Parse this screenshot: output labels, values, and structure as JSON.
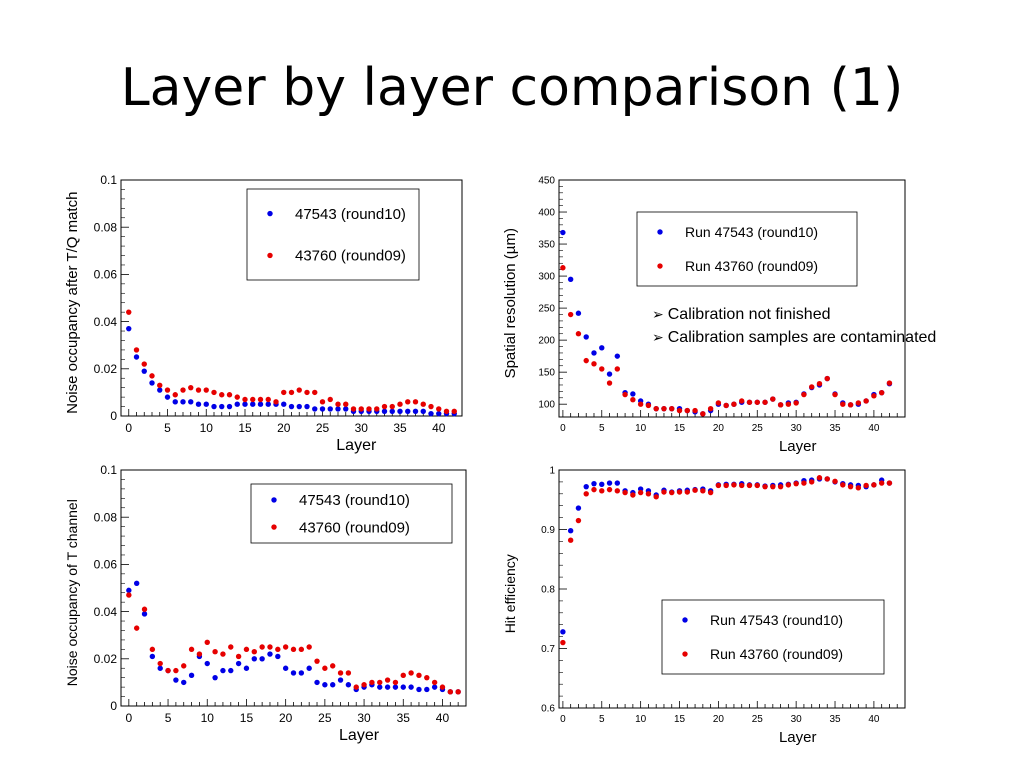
{
  "slide": {
    "title": "Layer by layer comparison (1)",
    "notes": [
      {
        "icon": "arrow-bullet",
        "text": "Calibration not finished"
      },
      {
        "icon": "arrow-bullet",
        "text": "Calibration samples are contaminated"
      }
    ]
  },
  "colors": {
    "blue": "#0000e6",
    "red": "#e60000"
  },
  "chart_data": [
    {
      "type": "scatter",
      "xlabel": "Layer",
      "ylabel": "Noise occupancy after T/Q match",
      "xlim": [
        -1,
        43
      ],
      "ylim": [
        0,
        0.1
      ],
      "xticks": [
        "0",
        "5",
        "10",
        "15",
        "20",
        "25",
        "30",
        "35",
        "40"
      ],
      "yticks": [
        "0",
        "0.02",
        "0.04",
        "0.06",
        "0.08",
        "0.1"
      ],
      "legend": "top-right",
      "series": [
        {
          "name": "47543 (round10)",
          "color": "#0000e6",
          "x": [
            0,
            1,
            2,
            3,
            4,
            5,
            6,
            7,
            8,
            9,
            10,
            11,
            12,
            13,
            14,
            15,
            16,
            17,
            18,
            19,
            20,
            21,
            22,
            23,
            24,
            25,
            26,
            27,
            28,
            29,
            30,
            31,
            32,
            33,
            34,
            35,
            36,
            37,
            38,
            39,
            40,
            41,
            42
          ],
          "y": [
            0.037,
            0.025,
            0.019,
            0.014,
            0.011,
            0.008,
            0.006,
            0.006,
            0.006,
            0.005,
            0.005,
            0.004,
            0.004,
            0.004,
            0.005,
            0.005,
            0.005,
            0.005,
            0.005,
            0.005,
            0.005,
            0.004,
            0.004,
            0.004,
            0.003,
            0.003,
            0.003,
            0.003,
            0.003,
            0.002,
            0.002,
            0.002,
            0.002,
            0.002,
            0.002,
            0.002,
            0.002,
            0.002,
            0.002,
            0.001,
            0.001,
            0.001,
            0.001
          ]
        },
        {
          "name": "43760 (round09)",
          "color": "#e60000",
          "x": [
            0,
            1,
            2,
            3,
            4,
            5,
            6,
            7,
            8,
            9,
            10,
            11,
            12,
            13,
            14,
            15,
            16,
            17,
            18,
            19,
            20,
            21,
            22,
            23,
            24,
            25,
            26,
            27,
            28,
            29,
            30,
            31,
            32,
            33,
            34,
            35,
            36,
            37,
            38,
            39,
            40,
            41,
            42
          ],
          "y": [
            0.044,
            0.028,
            0.022,
            0.017,
            0.013,
            0.011,
            0.009,
            0.011,
            0.012,
            0.011,
            0.011,
            0.01,
            0.009,
            0.009,
            0.008,
            0.007,
            0.007,
            0.007,
            0.007,
            0.006,
            0.01,
            0.01,
            0.011,
            0.01,
            0.01,
            0.006,
            0.007,
            0.005,
            0.005,
            0.003,
            0.003,
            0.003,
            0.003,
            0.004,
            0.004,
            0.005,
            0.006,
            0.006,
            0.005,
            0.004,
            0.003,
            0.002,
            0.002
          ]
        }
      ]
    },
    {
      "type": "scatter",
      "xlabel": "Layer",
      "ylabel": "Spatial resolution (µm)",
      "xlim": [
        -0.5,
        44
      ],
      "ylim": [
        80,
        450
      ],
      "xticks": [
        "0",
        "5",
        "10",
        "15",
        "20",
        "25",
        "30",
        "35",
        "40"
      ],
      "yticks": [
        "100",
        "150",
        "200",
        "250",
        "300",
        "350",
        "400",
        "450"
      ],
      "legend": "top-right",
      "series": [
        {
          "name": "Run 47543 (round10)",
          "color": "#0000e6",
          "x": [
            0,
            1,
            2,
            3,
            4,
            5,
            6,
            7,
            8,
            9,
            10,
            11,
            12,
            13,
            14,
            15,
            16,
            17,
            18,
            19,
            20,
            21,
            22,
            23,
            24,
            25,
            26,
            27,
            28,
            29,
            30,
            31,
            32,
            33,
            34,
            35,
            36,
            37,
            38,
            39,
            40,
            41,
            42
          ],
          "y": [
            368,
            295,
            242,
            205,
            180,
            188,
            147,
            175,
            118,
            116,
            105,
            100,
            93,
            93,
            93,
            93,
            90,
            88,
            85,
            90,
            100,
            98,
            100,
            103,
            103,
            103,
            103,
            108,
            99,
            102,
            103,
            116,
            126,
            130,
            140,
            116,
            102,
            99,
            100,
            105,
            115,
            118,
            132
          ]
        },
        {
          "name": "Run 43760 (round09)",
          "color": "#e60000",
          "x": [
            0,
            1,
            2,
            3,
            4,
            5,
            6,
            7,
            8,
            9,
            10,
            11,
            12,
            13,
            14,
            15,
            16,
            17,
            18,
            19,
            20,
            21,
            22,
            23,
            24,
            25,
            26,
            27,
            28,
            29,
            30,
            31,
            32,
            33,
            34,
            35,
            36,
            37,
            38,
            39,
            40,
            41,
            42
          ],
          "y": [
            313,
            240,
            210,
            168,
            163,
            155,
            133,
            155,
            115,
            107,
            100,
            98,
            93,
            93,
            93,
            90,
            90,
            90,
            85,
            93,
            102,
            98,
            100,
            105,
            103,
            103,
            103,
            108,
            99,
            100,
            102,
            115,
            127,
            132,
            140,
            115,
            100,
            99,
            102,
            105,
            113,
            118,
            133
          ]
        }
      ]
    },
    {
      "type": "scatter",
      "xlabel": "Layer",
      "ylabel": "Noise occupancy of T channel",
      "xlim": [
        -1,
        43
      ],
      "ylim": [
        0,
        0.1
      ],
      "xticks": [
        "0",
        "5",
        "10",
        "15",
        "20",
        "25",
        "30",
        "35",
        "40"
      ],
      "yticks": [
        "0",
        "0.02",
        "0.04",
        "0.06",
        "0.08",
        "0.1"
      ],
      "legend": "top-right",
      "series": [
        {
          "name": "47543 (round10)",
          "color": "#0000e6",
          "x": [
            0,
            1,
            2,
            3,
            4,
            5,
            6,
            7,
            8,
            9,
            10,
            11,
            12,
            13,
            14,
            15,
            16,
            17,
            18,
            19,
            20,
            21,
            22,
            23,
            24,
            25,
            26,
            27,
            28,
            29,
            30,
            31,
            32,
            33,
            34,
            35,
            36,
            37,
            38,
            39,
            40,
            41,
            42
          ],
          "y": [
            0.049,
            0.052,
            0.039,
            0.021,
            0.016,
            0.015,
            0.011,
            0.01,
            0.013,
            0.021,
            0.018,
            0.012,
            0.015,
            0.015,
            0.018,
            0.016,
            0.02,
            0.02,
            0.022,
            0.021,
            0.016,
            0.014,
            0.014,
            0.016,
            0.01,
            0.009,
            0.009,
            0.011,
            0.009,
            0.007,
            0.008,
            0.009,
            0.008,
            0.008,
            0.008,
            0.008,
            0.008,
            0.007,
            0.007,
            0.008,
            0.007,
            0.006,
            0.006
          ]
        },
        {
          "name": "43760 (round09)",
          "color": "#e60000",
          "x": [
            0,
            1,
            2,
            3,
            4,
            5,
            6,
            7,
            8,
            9,
            10,
            11,
            12,
            13,
            14,
            15,
            16,
            17,
            18,
            19,
            20,
            21,
            22,
            23,
            24,
            25,
            26,
            27,
            28,
            29,
            30,
            31,
            32,
            33,
            34,
            35,
            36,
            37,
            38,
            39,
            40,
            41,
            42
          ],
          "y": [
            0.047,
            0.033,
            0.041,
            0.024,
            0.018,
            0.015,
            0.015,
            0.017,
            0.024,
            0.022,
            0.027,
            0.023,
            0.022,
            0.025,
            0.021,
            0.024,
            0.023,
            0.025,
            0.025,
            0.024,
            0.025,
            0.024,
            0.024,
            0.025,
            0.019,
            0.016,
            0.017,
            0.014,
            0.014,
            0.008,
            0.009,
            0.01,
            0.01,
            0.011,
            0.01,
            0.013,
            0.014,
            0.013,
            0.012,
            0.01,
            0.008,
            0.006,
            0.006
          ]
        }
      ]
    },
    {
      "type": "scatter",
      "xlabel": "Layer",
      "ylabel": "Hit efficiency",
      "xlim": [
        -0.5,
        44
      ],
      "ylim": [
        0.6,
        1
      ],
      "xticks": [
        "0",
        "5",
        "10",
        "15",
        "20",
        "25",
        "30",
        "35",
        "40"
      ],
      "yticks": [
        "0.6",
        "0.7",
        "0.8",
        "0.9",
        "1"
      ],
      "legend": "bottom-right",
      "series": [
        {
          "name": "Run 47543 (round10)",
          "color": "#0000e6",
          "x": [
            0,
            1,
            2,
            3,
            4,
            5,
            6,
            7,
            8,
            9,
            10,
            11,
            12,
            13,
            14,
            15,
            16,
            17,
            18,
            19,
            20,
            21,
            22,
            23,
            24,
            25,
            26,
            27,
            28,
            29,
            30,
            31,
            32,
            33,
            34,
            35,
            36,
            37,
            38,
            39,
            40,
            41,
            42
          ],
          "y": [
            0.728,
            0.898,
            0.936,
            0.972,
            0.977,
            0.976,
            0.978,
            0.978,
            0.965,
            0.962,
            0.968,
            0.965,
            0.958,
            0.966,
            0.963,
            0.965,
            0.966,
            0.967,
            0.968,
            0.965,
            0.975,
            0.976,
            0.976,
            0.977,
            0.975,
            0.975,
            0.973,
            0.974,
            0.975,
            0.976,
            0.978,
            0.982,
            0.983,
            0.985,
            0.985,
            0.98,
            0.977,
            0.975,
            0.974,
            0.972,
            0.975,
            0.983,
            0.978
          ]
        },
        {
          "name": "Run 43760 (round09)",
          "color": "#e60000",
          "x": [
            0,
            1,
            2,
            3,
            4,
            5,
            6,
            7,
            8,
            9,
            10,
            11,
            12,
            13,
            14,
            15,
            16,
            17,
            18,
            19,
            20,
            21,
            22,
            23,
            24,
            25,
            26,
            27,
            28,
            29,
            30,
            31,
            32,
            33,
            34,
            35,
            36,
            37,
            38,
            39,
            40,
            41,
            42
          ],
          "y": [
            0.71,
            0.882,
            0.915,
            0.96,
            0.967,
            0.965,
            0.967,
            0.965,
            0.962,
            0.958,
            0.962,
            0.96,
            0.955,
            0.963,
            0.962,
            0.963,
            0.963,
            0.966,
            0.965,
            0.962,
            0.974,
            0.974,
            0.975,
            0.974,
            0.974,
            0.974,
            0.972,
            0.972,
            0.972,
            0.975,
            0.977,
            0.978,
            0.98,
            0.987,
            0.985,
            0.981,
            0.975,
            0.972,
            0.97,
            0.974,
            0.975,
            0.978,
            0.978
          ]
        }
      ]
    }
  ]
}
